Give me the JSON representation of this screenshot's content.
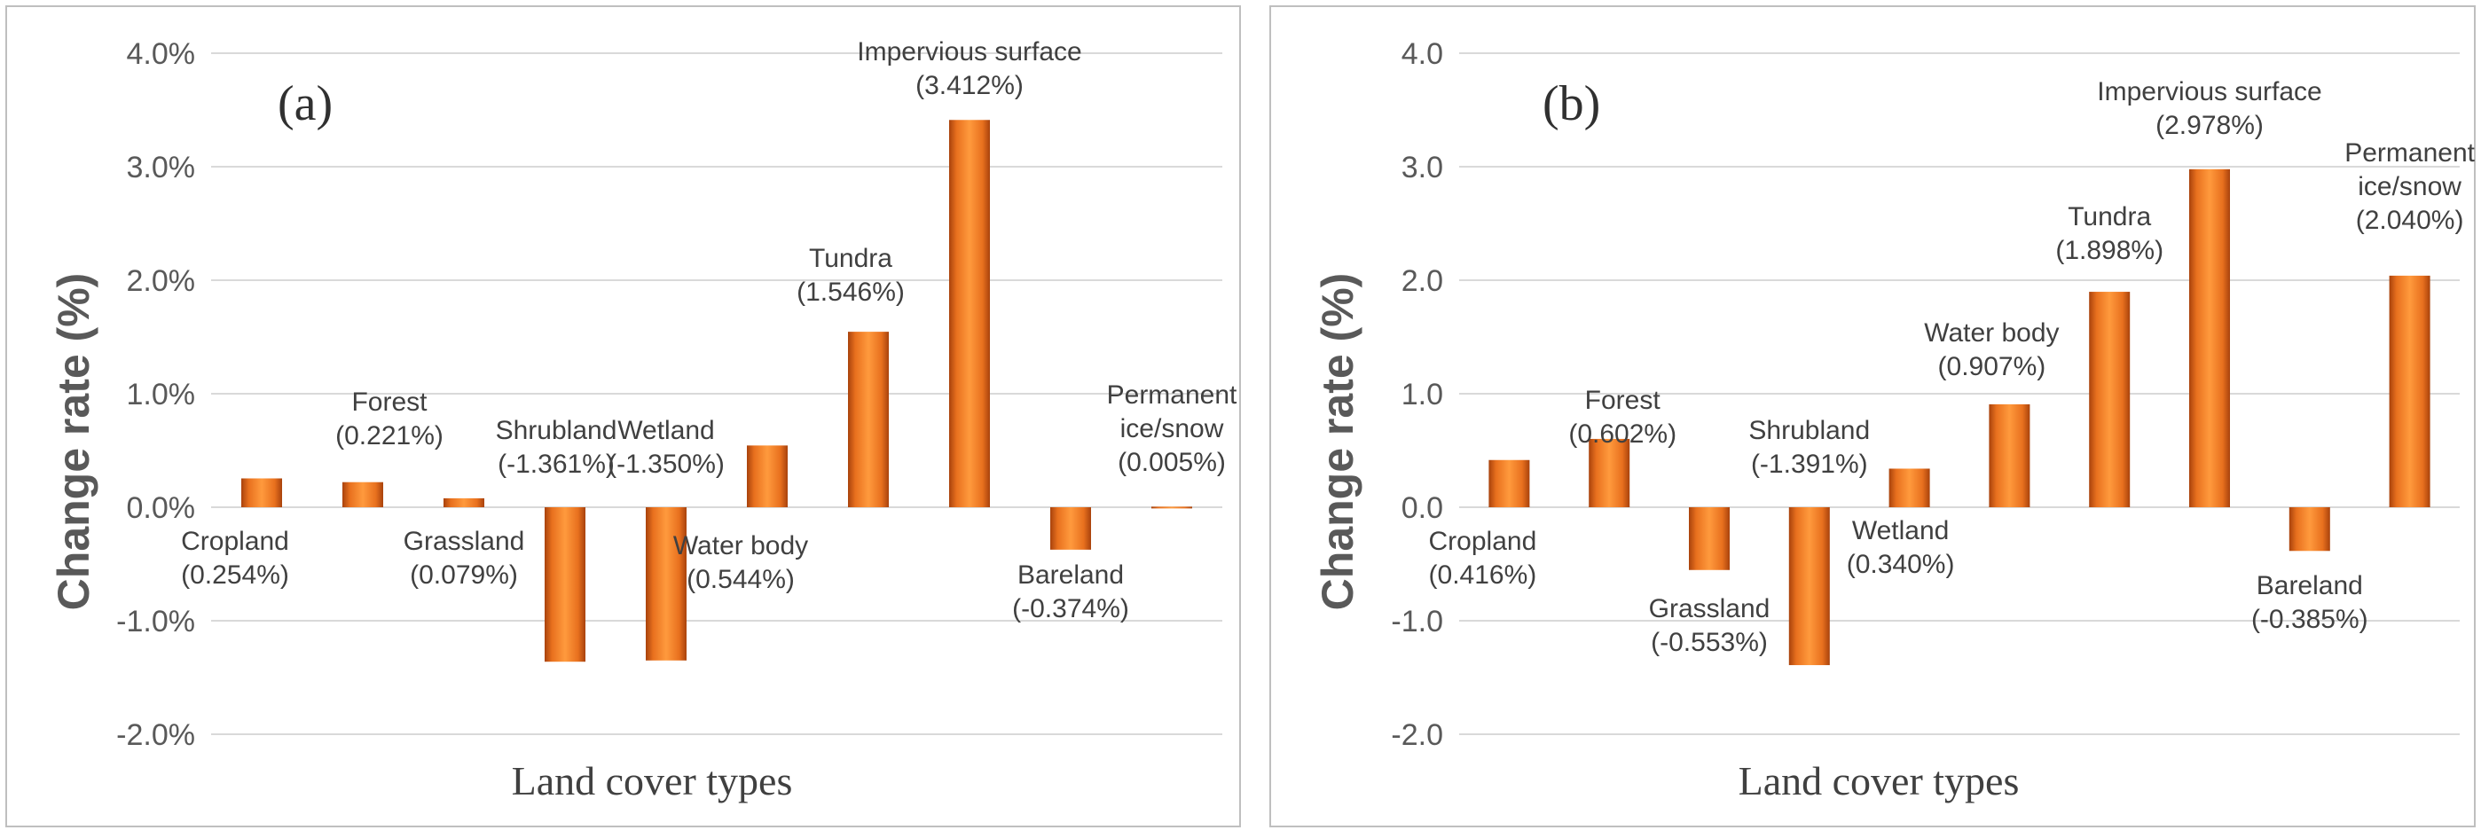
{
  "chart_data": [
    {
      "type": "bar",
      "panel_tag": "(a)",
      "xlabel": "Land cover types",
      "ylabel": "Change rate (%)",
      "ylim": [
        -2.0,
        4.0
      ],
      "yticks": [
        "-2.0%",
        "-1.0%",
        "0.0%",
        "1.0%",
        "2.0%",
        "3.0%",
        "4.0%"
      ],
      "categories": [
        "Cropland",
        "Forest",
        "Grassland",
        "Shrubland",
        "Wetland",
        "Water body",
        "Tundra",
        "Impervious surface",
        "Bareland",
        "Permanent ice/snow"
      ],
      "values": [
        0.254,
        0.221,
        0.079,
        -1.361,
        -1.35,
        0.544,
        1.546,
        3.412,
        -0.374,
        0.005
      ],
      "labels": [
        {
          "name": "Cropland",
          "value": "(0.254%)"
        },
        {
          "name": "Forest",
          "value": "(0.221%)"
        },
        {
          "name": "Grassland",
          "value": "(0.079%)"
        },
        {
          "name": "Shrubland",
          "value": "(-1.361%)"
        },
        {
          "name": "Wetland",
          "value": "(-1.350%)"
        },
        {
          "name": "Water body",
          "value": "(0.544%)"
        },
        {
          "name": "Tundra",
          "value": "(1.546%)"
        },
        {
          "name": "Impervious surface",
          "value": "(3.412%)"
        },
        {
          "name": "Bareland",
          "value": "(-0.374%)"
        },
        {
          "name": "Permanent ice/snow",
          "value": "(0.005%)"
        }
      ],
      "grid": true,
      "bar_color": "#f07f28"
    },
    {
      "type": "bar",
      "panel_tag": "(b)",
      "xlabel": "Land cover types",
      "ylabel": "Change rate (%)",
      "ylim": [
        -2.0,
        4.0
      ],
      "yticks": [
        "-2.0",
        "-1.0",
        "0.0",
        "1.0",
        "2.0",
        "3.0",
        "4.0"
      ],
      "categories": [
        "Cropland",
        "Forest",
        "Grassland",
        "Shrubland",
        "Wetland",
        "Water body",
        "Tundra",
        "Impervious surface",
        "Bareland",
        "Permanent ice/snow"
      ],
      "values": [
        0.416,
        0.602,
        -0.553,
        -1.391,
        0.34,
        0.907,
        1.898,
        2.978,
        -0.385,
        2.04
      ],
      "labels": [
        {
          "name": "Cropland",
          "value": "(0.416%)"
        },
        {
          "name": "Forest",
          "value": "(0.602%)"
        },
        {
          "name": "Grassland",
          "value": "(-0.553%)"
        },
        {
          "name": "Shrubland",
          "value": "(-1.391%)"
        },
        {
          "name": "Wetland",
          "value": "(0.340%)"
        },
        {
          "name": "Water body",
          "value": "(0.907%)"
        },
        {
          "name": "Tundra",
          "value": "(1.898%)"
        },
        {
          "name": "Impervious surface",
          "value": "(2.978%)"
        },
        {
          "name": "Bareland",
          "value": "(-0.385%)"
        },
        {
          "name": "Permanent ice/snow",
          "value": "(2.040%)"
        }
      ],
      "grid": true,
      "bar_color": "#f07f28"
    }
  ]
}
